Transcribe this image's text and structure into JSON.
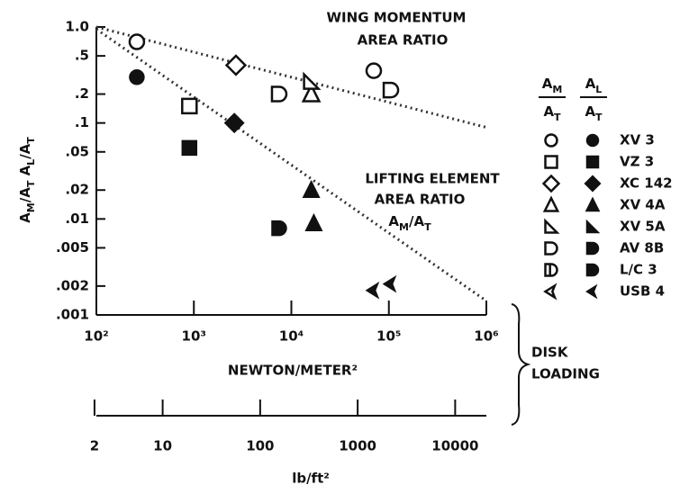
{
  "chart_data": {
    "type": "scatter",
    "log_x": true,
    "log_y": true,
    "xlim": [
      100,
      1000000
    ],
    "xticks": [
      {
        "value": 100,
        "label": "10²"
      },
      {
        "value": 1000,
        "label": "10³"
      },
      {
        "value": 10000,
        "label": "10⁴"
      },
      {
        "value": 100000,
        "label": "10⁵"
      },
      {
        "value": 1000000,
        "label": "10⁶"
      }
    ],
    "x_label": "NEWTON/METER²",
    "ylim": [
      0.001,
      1
    ],
    "yticks": [
      {
        "value": 1,
        "label": "1.0"
      },
      {
        "value": 0.5,
        "label": ".5"
      },
      {
        "value": 0.2,
        "label": ".2"
      },
      {
        "value": 0.1,
        "label": ".1"
      },
      {
        "value": 0.05,
        "label": ".05"
      },
      {
        "value": 0.02,
        "label": ".02"
      },
      {
        "value": 0.01,
        "label": ".01"
      },
      {
        "value": 0.005,
        "label": ".005"
      },
      {
        "value": 0.002,
        "label": ".002"
      },
      {
        "value": 0.001,
        "label": ".001"
      }
    ],
    "y_label": [
      "A",
      "M",
      "/A",
      "T",
      "   A",
      "L",
      "/A",
      "T"
    ],
    "x2lim": [
      2.09,
      20885
    ],
    "x2ticks": [
      2,
      10,
      100,
      1000,
      10000
    ],
    "x2_label": "lb/ft²",
    "axis_group_label": [
      "DISK",
      "LOADING"
    ],
    "annotations": {
      "momentum": [
        "WING MOMENTUM",
        "AREA RATIO"
      ],
      "lifting": [
        "LIFTING ELEMENT",
        "AREA RATIO"
      ],
      "lifting_ratio": [
        "A",
        "M",
        "/A",
        "T"
      ]
    },
    "legend_headers": [
      [
        "A",
        "M",
        "A",
        "T"
      ],
      [
        "A",
        "L",
        "A",
        "T"
      ]
    ],
    "trend_lines": [
      {
        "x": [
          100,
          1000000
        ],
        "y": [
          1,
          0.09
        ]
      },
      {
        "x": [
          100,
          1000000
        ],
        "y": [
          0.95,
          0.0014
        ]
      }
    ],
    "series": [
      {
        "name": "XV 3",
        "shape": "circle",
        "momentum": {
          "x": [
            260,
            70000
          ],
          "y": [
            0.7,
            0.35
          ]
        },
        "lifting": {
          "x": [
            260
          ],
          "y": [
            0.3
          ]
        }
      },
      {
        "name": "VZ 3",
        "shape": "square",
        "momentum": {
          "x": [
            900
          ],
          "y": [
            0.15
          ]
        },
        "lifting": {
          "x": [
            900
          ],
          "y": [
            0.055
          ]
        }
      },
      {
        "name": "XC 142",
        "shape": "diamond",
        "momentum": {
          "x": [
            2700
          ],
          "y": [
            0.4
          ]
        },
        "lifting": {
          "x": [
            2600
          ],
          "y": [
            0.1
          ]
        }
      },
      {
        "name": "XV 4A",
        "shape": "triangle",
        "momentum": {
          "x": [
            16000
          ],
          "y": [
            0.2
          ]
        },
        "lifting": {
          "x": [
            16000,
            17000
          ],
          "y": [
            0.02,
            0.009
          ]
        }
      },
      {
        "name": "XV 5A",
        "shape": "wedge",
        "momentum": {
          "x": [
            16000
          ],
          "y": [
            0.27
          ]
        },
        "lifting": {
          "x": [],
          "y": []
        }
      },
      {
        "name": "AV 8B",
        "shape": "dee",
        "momentum": {
          "x": [
            7500,
            105000
          ],
          "y": [
            0.2,
            0.22
          ]
        },
        "lifting": {
          "x": [],
          "y": []
        }
      },
      {
        "name": "L/C 3",
        "shape": "dee2",
        "momentum": {
          "x": [],
          "y": []
        },
        "lifting": {
          "x": [
            7500
          ],
          "y": [
            0.008
          ]
        }
      },
      {
        "name": "USB 4",
        "shape": "chevron",
        "momentum": {
          "x": [],
          "y": []
        },
        "lifting": {
          "x": [
            70000,
            105000
          ],
          "y": [
            0.0018,
            0.0021
          ]
        }
      }
    ]
  }
}
